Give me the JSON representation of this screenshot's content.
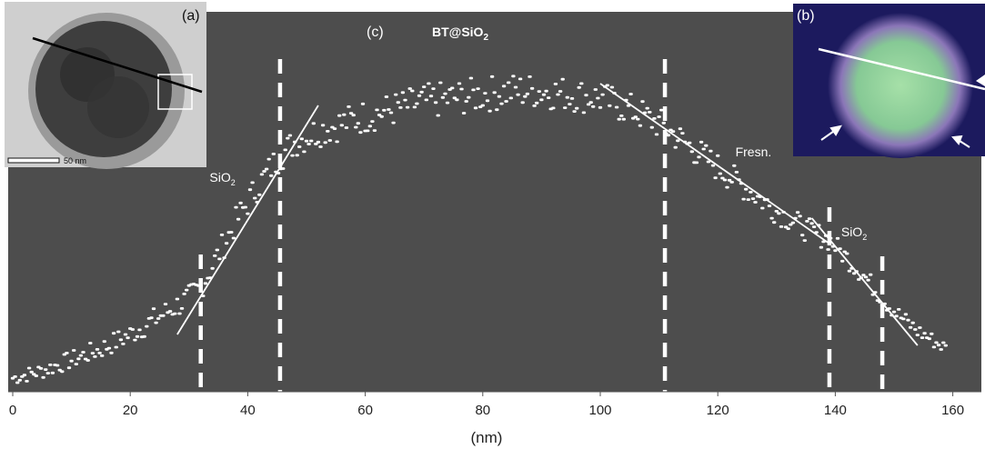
{
  "colors": {
    "plot_background": "#4d4d4d",
    "points": "#ffffff",
    "fit_lines": "#ffffff",
    "boundary_lines": "#ffffff",
    "inset_b_background": "#1c1a5e",
    "inset_b_particle": "#8fd9a0"
  },
  "chart_data": {
    "type": "scatter",
    "title": "BT@SiO",
    "title_subscript": "2",
    "panel_label": "(c)",
    "xlabel": "(nm)",
    "ylabel": "",
    "xlim": [
      0,
      165
    ],
    "x_ticks": [
      0,
      20,
      40,
      60,
      80,
      100,
      120,
      140,
      160
    ],
    "y_unit": "relative intensity (0–1, unlabeled axis)",
    "ylim": [
      0,
      1.0
    ],
    "grid": false,
    "legend": "none",
    "series": [
      {
        "values_profile": {
          "x": [
            0,
            5,
            10,
            15,
            20,
            25,
            30,
            32,
            35,
            38,
            41,
            44,
            45.5,
            48,
            52,
            56,
            60,
            65,
            70,
            75,
            80,
            85,
            90,
            95,
            100,
            105,
            110,
            111,
            115,
            120,
            125,
            130,
            135,
            139,
            142,
            145,
            148,
            151,
            154,
            157,
            159
          ],
          "y": [
            0.02,
            0.04,
            0.07,
            0.1,
            0.14,
            0.19,
            0.24,
            0.27,
            0.36,
            0.45,
            0.53,
            0.6,
            0.63,
            0.67,
            0.7,
            0.72,
            0.74,
            0.76,
            0.78,
            0.79,
            0.8,
            0.81,
            0.81,
            0.8,
            0.79,
            0.76,
            0.72,
            0.71,
            0.66,
            0.6,
            0.54,
            0.48,
            0.43,
            0.4,
            0.35,
            0.3,
            0.24,
            0.19,
            0.15,
            0.12,
            0.1
          ]
        }
      }
    ],
    "boundary_lines_x": [
      32,
      45.5,
      111,
      139,
      148
    ],
    "fit_lines": [
      {
        "x": [
          28,
          52
        ],
        "y": [
          0.14,
          0.77
        ]
      },
      {
        "x": [
          100,
          139
        ],
        "y": [
          0.83,
          0.39
        ]
      },
      {
        "x": [
          136,
          154
        ],
        "y": [
          0.46,
          0.11
        ]
      }
    ],
    "annotations": [
      {
        "text": "SiO",
        "sub": "2",
        "x": 33.5,
        "y": 0.56
      },
      {
        "text": "Fresn.",
        "x": 123,
        "y": 0.63
      },
      {
        "text": "SiO",
        "sub": "2",
        "x": 141,
        "y": 0.41
      }
    ]
  },
  "insets": {
    "a": {
      "label": "(a)",
      "scale_bar_text": "50 nm"
    },
    "b": {
      "label": "(b)"
    }
  }
}
